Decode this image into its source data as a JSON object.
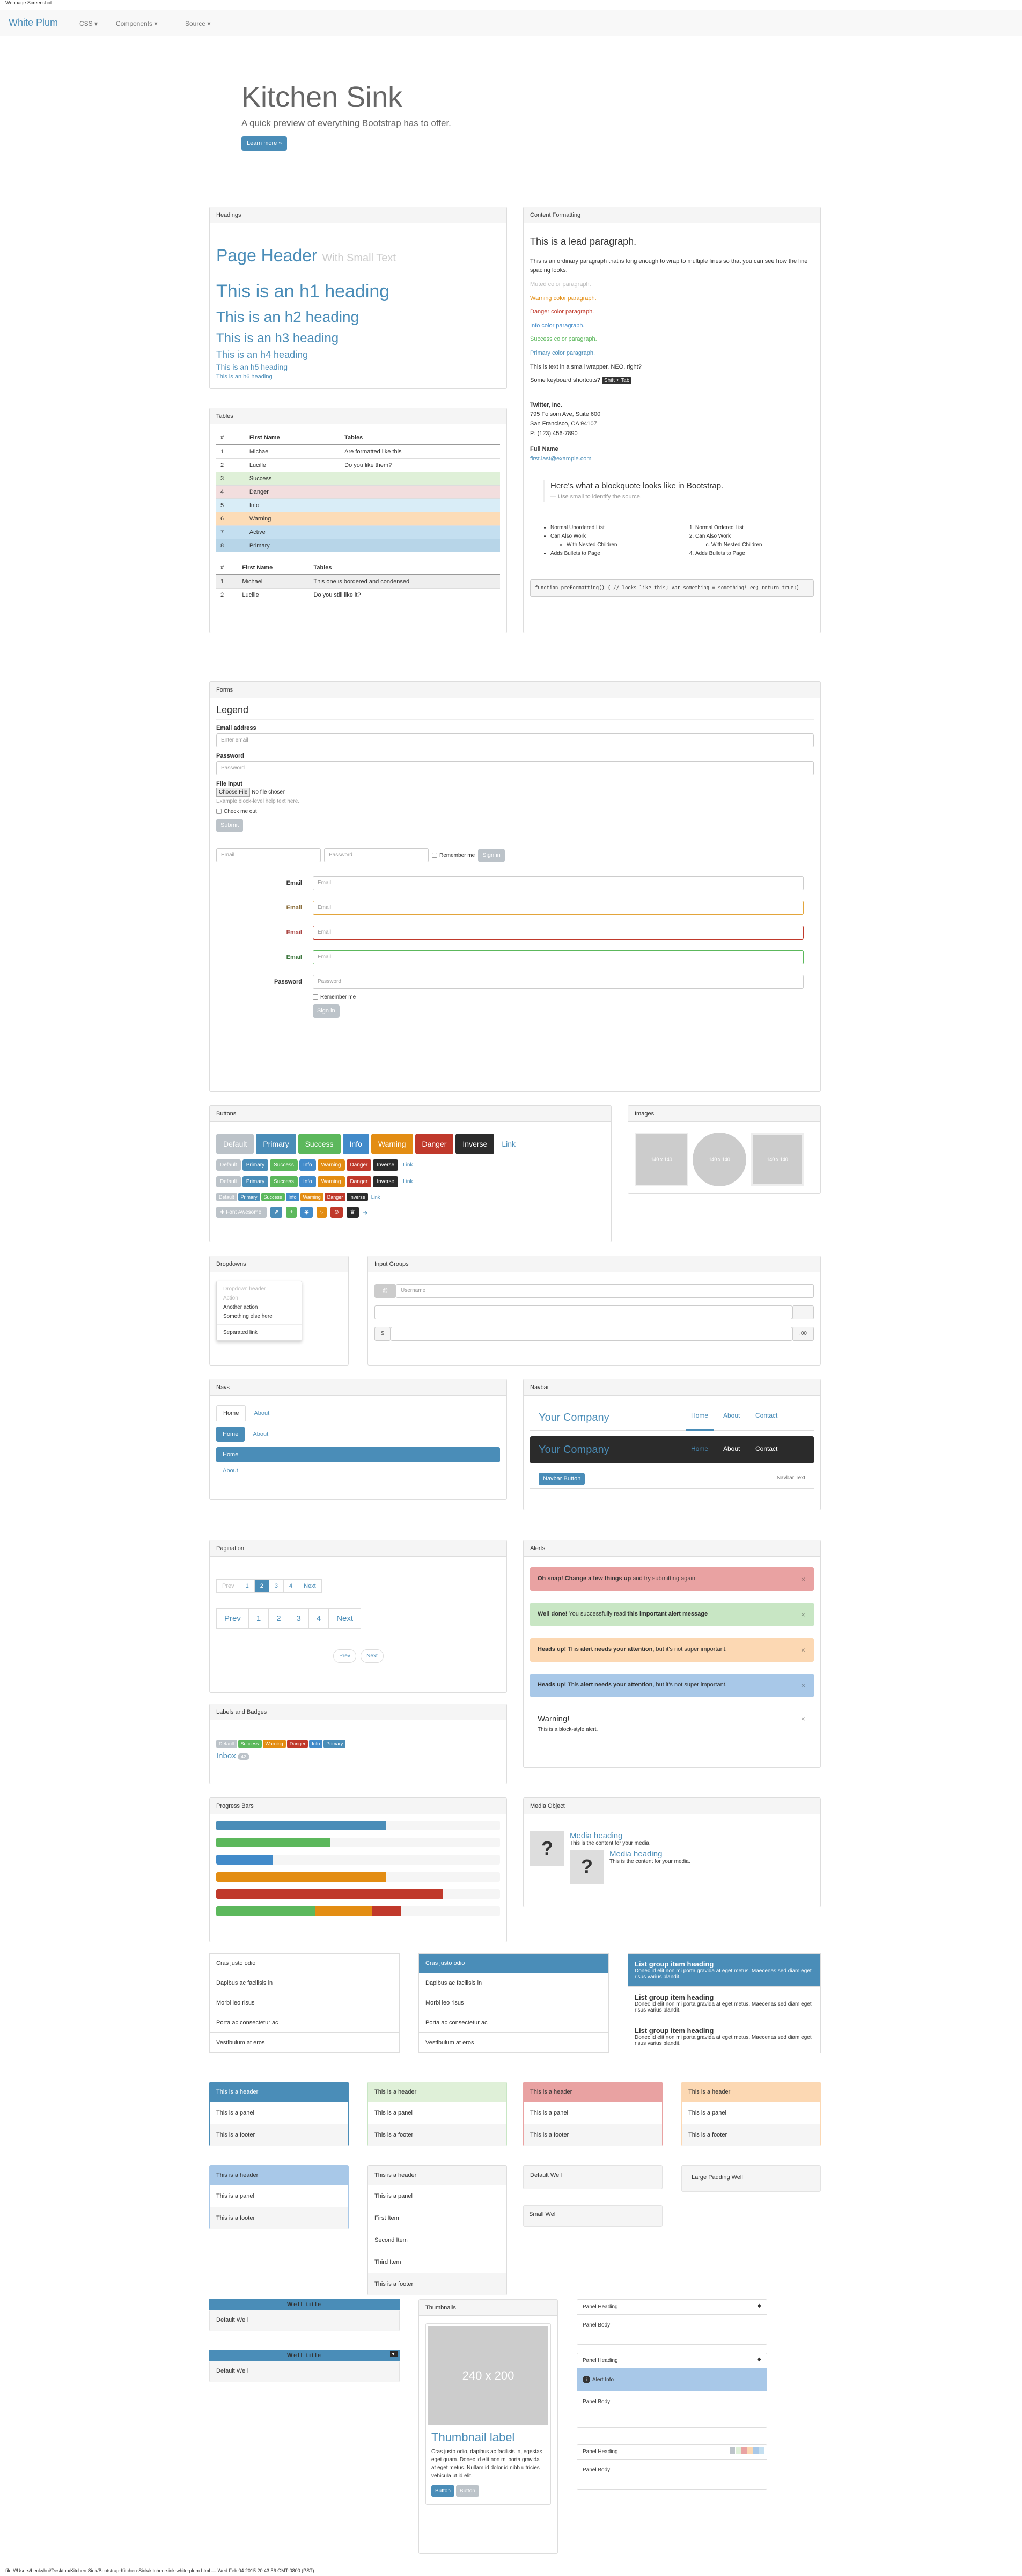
{
  "caption_top": "Webpage Screenshot",
  "caption_bottom": "file:///Users/beckyhui/Desktop/Kitchen Sink/Bootstrap-Kitchen-Sink/kitchen-sink-white-plum.html — Wed Feb 04 2015 20:43:56 GMT-0800 (PST)",
  "navbar": {
    "brand": "White Plum",
    "items": [
      "CSS ▾",
      "Components ▾",
      "Source ▾"
    ]
  },
  "hero": {
    "title": "Kitchen Sink",
    "subtitle": "A quick preview of everything Bootstrap has to offer.",
    "button": "Learn more »"
  },
  "headings": {
    "title": "Headings",
    "page_header": "Page Header",
    "small": "With Small Text",
    "h1": "This is an h1 heading",
    "h2": "This is an h2 heading",
    "h3": "This is an h3 heading",
    "h4": "This is an h4 heading",
    "h5": "This is an h5 heading",
    "h6": "This is an h6 heading"
  },
  "content": {
    "title": "Content Formatting",
    "lead": "This is a lead paragraph.",
    "para": "This is an ordinary paragraph that is long enough to wrap to multiple lines so that you can see how the line spacing looks.",
    "muted": "Muted color paragraph.",
    "warning": "Warning color paragraph.",
    "danger": "Danger color paragraph.",
    "info": "Info color paragraph.",
    "success": "Success color paragraph.",
    "primary": "Primary color paragraph.",
    "small_text": "This is text in a small wrapper. NEO, right?",
    "shortcuts": "Some keyboard shortcuts?",
    "kbd": "Shift + Tab",
    "addr_name": "Twitter, Inc.",
    "addr1": "795 Folsom Ave, Suite 600",
    "addr2": "San Francisco, CA 94107",
    "addr3": "P: (123) 456-7890",
    "full_name": "Full Name",
    "email": "first.last@example.com",
    "quote": "Here's what a blockquote looks like in Bootstrap.",
    "quote_src": "— Use small to identify the source.",
    "ul": [
      "Normal Unordered List",
      "Can Also Work",
      "With Nested Children",
      "Adds Bullets to Page"
    ],
    "ol": [
      "Normal Ordered List",
      "Can Also Work",
      "With Nested Children",
      "Adds Bullets to Page"
    ],
    "pre": "function preFormatting() {  // looks like this;  var something = something!  ee; return true;}"
  },
  "tables": {
    "title": "Tables",
    "cols": [
      "#",
      "First Name",
      "Tables"
    ],
    "rows": [
      [
        "1",
        "Michael",
        "Are formatted like this"
      ],
      [
        "2",
        "Lucille",
        "Do you like them?"
      ],
      [
        "3",
        "Success",
        ""
      ],
      [
        "4",
        "Danger",
        ""
      ],
      [
        "5",
        "Info",
        ""
      ],
      [
        "6",
        "Warning",
        ""
      ],
      [
        "7",
        "Active",
        ""
      ],
      [
        "8",
        "Primary",
        ""
      ]
    ],
    "rows2": [
      [
        "1",
        "Michael",
        "This one is bordered and condensed"
      ],
      [
        "2",
        "Lucille",
        "Do you still like it?"
      ]
    ]
  },
  "forms": {
    "title": "Forms",
    "legend": "Legend",
    "email_label": "Email address",
    "email_ph": "Enter email",
    "pw_label": "Password",
    "pw_ph": "Password",
    "file_label": "File input",
    "file_btn": "Choose File",
    "file_none": "No file chosen",
    "help": "Example block-level help text here.",
    "check": "Check me out",
    "submit": "Submit",
    "inline_email": "Email",
    "inline_pw": "Password",
    "remember": "Remember me",
    "signin": "Sign in",
    "h_labels": [
      "Email",
      "Email",
      "Email",
      "Email",
      "Password"
    ],
    "h_ph": [
      "Email",
      "Email",
      "Email",
      "Email",
      "Password"
    ]
  },
  "buttons": {
    "title": "Buttons",
    "labels": [
      "Default",
      "Primary",
      "Success",
      "Info",
      "Warning",
      "Danger",
      "Inverse",
      "Link"
    ],
    "bookmark": "Font Awesome!"
  },
  "images": {
    "title": "Images",
    "ph": "140 x 140"
  },
  "dropdowns": {
    "title": "Dropdowns",
    "header": "Dropdown header",
    "items": [
      "Action",
      "Another action",
      "Something else here",
      "Separated link"
    ]
  },
  "input_groups": {
    "title": "Input Groups",
    "at": "@",
    "username": "Username",
    ".00": ".00",
    "dollar": "$"
  },
  "navs": {
    "title": "Navs",
    "home": "Home",
    "about": "About"
  },
  "navbar2": {
    "title": "Navbar",
    "company": "Your Company",
    "links": [
      "Home",
      "About",
      "Contact"
    ],
    "btn": "Navbar Button",
    "text": "Navbar Text"
  },
  "pagination": {
    "title": "Pagination",
    "prev": "Prev",
    "next": "Next",
    "pages": [
      "1",
      "2",
      "3",
      "4"
    ]
  },
  "alerts": {
    "title": "Alerts",
    "a1b": "Oh snap! Change a few things up",
    "a1": " and try submitting again.",
    "a2b": "Well done!",
    "a2": " You successfully read ",
    "a2c": "this important alert message",
    "a3b": "Heads up!",
    "a3": " This ",
    "a3c": "alert needs your attention",
    "a3d": ", but it's not super important.",
    "warn_title": "Warning!",
    "warn_body": "This is a block-style alert."
  },
  "labels": {
    "title": "Labels and Badges",
    "items": [
      "Default",
      "Success",
      "Warning",
      "Danger",
      "Info",
      "Primary"
    ],
    "inbox": "Inbox",
    "badge": "42"
  },
  "progress": {
    "title": "Progress Bars",
    "bars": [
      0.6,
      0.4,
      0.2,
      0.6,
      0.8
    ]
  },
  "media": {
    "title": "Media Object",
    "heading": "Media heading",
    "body": "This is the content for your media."
  },
  "listgroups": {
    "items": [
      "Cras justo odio",
      "Dapibus ac facilisis in",
      "Morbi leo risus",
      "Porta ac consectetur ac",
      "Vestibulum at eros"
    ],
    "lh": "List group item heading",
    "lt": "Donec id elit non mi porta gravida at eget metus. Maecenas sed diam eget risus varius blandit."
  },
  "panels": {
    "header": "This is a header",
    "panel": "This is a panel",
    "footer": "This is a footer",
    "first": "First Item",
    "second": "Second Item",
    "third": "Third Item",
    "wells": [
      "Default Well",
      "Large Padding Well",
      "Small Well"
    ]
  },
  "wells2": {
    "title": "Well title",
    "body": "Default Well"
  },
  "thumbnails": {
    "title": "Thumbnails",
    "ph": "240 x 200",
    "label": "Thumbnail label",
    "text": "Cras justo odio, dapibus ac facilisis in, egestas eget quam. Donec id elit non mi porta gravida at eget metus. Nullam id dolor id nibh ultricies vehicula ut id elit.",
    "btn1": "Button",
    "btn2": "Button"
  },
  "hpanels": {
    "heading": "Panel Heading",
    "body": "Panel Body",
    "alert": "Alert Info"
  }
}
